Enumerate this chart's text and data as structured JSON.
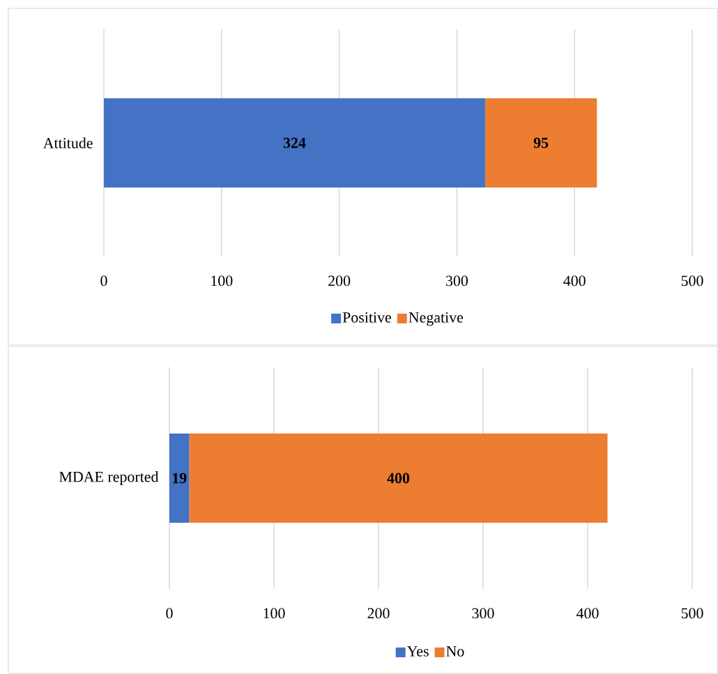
{
  "chart_data": [
    {
      "type": "bar",
      "orientation": "horizontal",
      "stacked": true,
      "categories": [
        "Attitude"
      ],
      "series": [
        {
          "name": "Positive",
          "color": "#4472c4",
          "values": [
            324
          ]
        },
        {
          "name": "Negative",
          "color": "#ed7d31",
          "values": [
            95
          ]
        }
      ],
      "xlim": [
        0,
        500
      ],
      "xticks": [
        0,
        100,
        200,
        300,
        400,
        500
      ],
      "grid": "x",
      "legend": "bottom",
      "data_labels": true
    },
    {
      "type": "bar",
      "orientation": "horizontal",
      "stacked": true,
      "categories": [
        "MDAE reported"
      ],
      "series": [
        {
          "name": "Yes",
          "color": "#4472c4",
          "values": [
            19
          ]
        },
        {
          "name": "No",
          "color": "#ed7d31",
          "values": [
            400
          ]
        }
      ],
      "xlim": [
        0,
        500
      ],
      "xticks": [
        0,
        100,
        200,
        300,
        400,
        500
      ],
      "grid": "x",
      "legend": "bottom",
      "data_labels": true
    }
  ]
}
